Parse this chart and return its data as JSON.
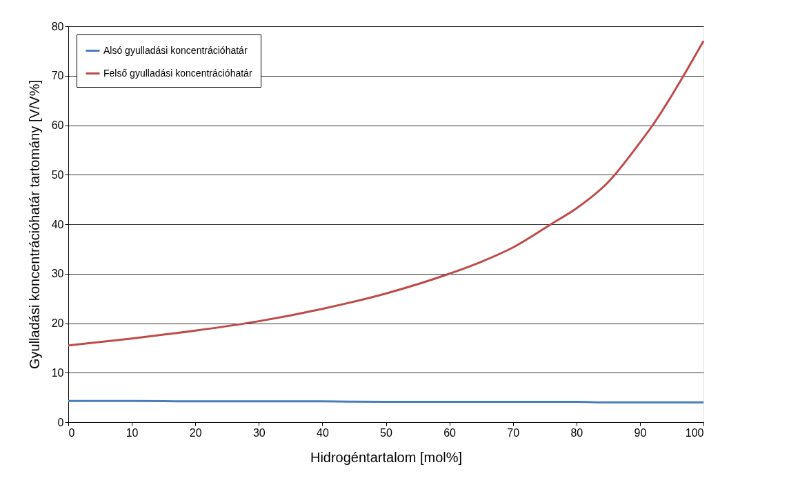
{
  "chart_data": {
    "type": "line",
    "xlabel": "Hidrogéntartalom [mol%]",
    "ylabel": "Gyulladási koncentrációhatár tartomány [V/V%]",
    "xlim": [
      0,
      100
    ],
    "xticks": [
      0,
      10,
      20,
      30,
      40,
      50,
      60,
      70,
      80,
      90,
      100
    ],
    "ylim": [
      0,
      80
    ],
    "yticks": [
      0,
      10,
      20,
      30,
      40,
      50,
      60,
      70,
      80
    ],
    "grid": "y",
    "legend": "top left",
    "marker": "none",
    "line_style": "solid",
    "x": [
      0,
      10,
      20,
      30,
      40,
      50,
      60,
      65,
      70,
      76,
      80,
      85,
      90,
      92,
      95,
      98,
      100
    ],
    "series": [
      {
        "name": "Alsó gyulladási koncentrációhatár",
        "color": "#4a7ebb",
        "values": [
          4.3,
          4.3,
          4.2,
          4.2,
          4.2,
          4.1,
          4.1,
          4.1,
          4.1,
          4.1,
          4.1,
          4.0,
          4.0,
          4.0,
          4.0,
          4.0,
          4.0
        ]
      },
      {
        "name": "Felső gyulladási koncentrációhatár",
        "color": "#be4b48",
        "values": [
          15.5,
          16.9,
          18.5,
          20.4,
          22.9,
          26.0,
          30.0,
          32.4,
          35.3,
          40.0,
          43.2,
          48.5,
          56.5,
          60.0,
          66.0,
          72.5,
          77.0
        ]
      }
    ]
  }
}
